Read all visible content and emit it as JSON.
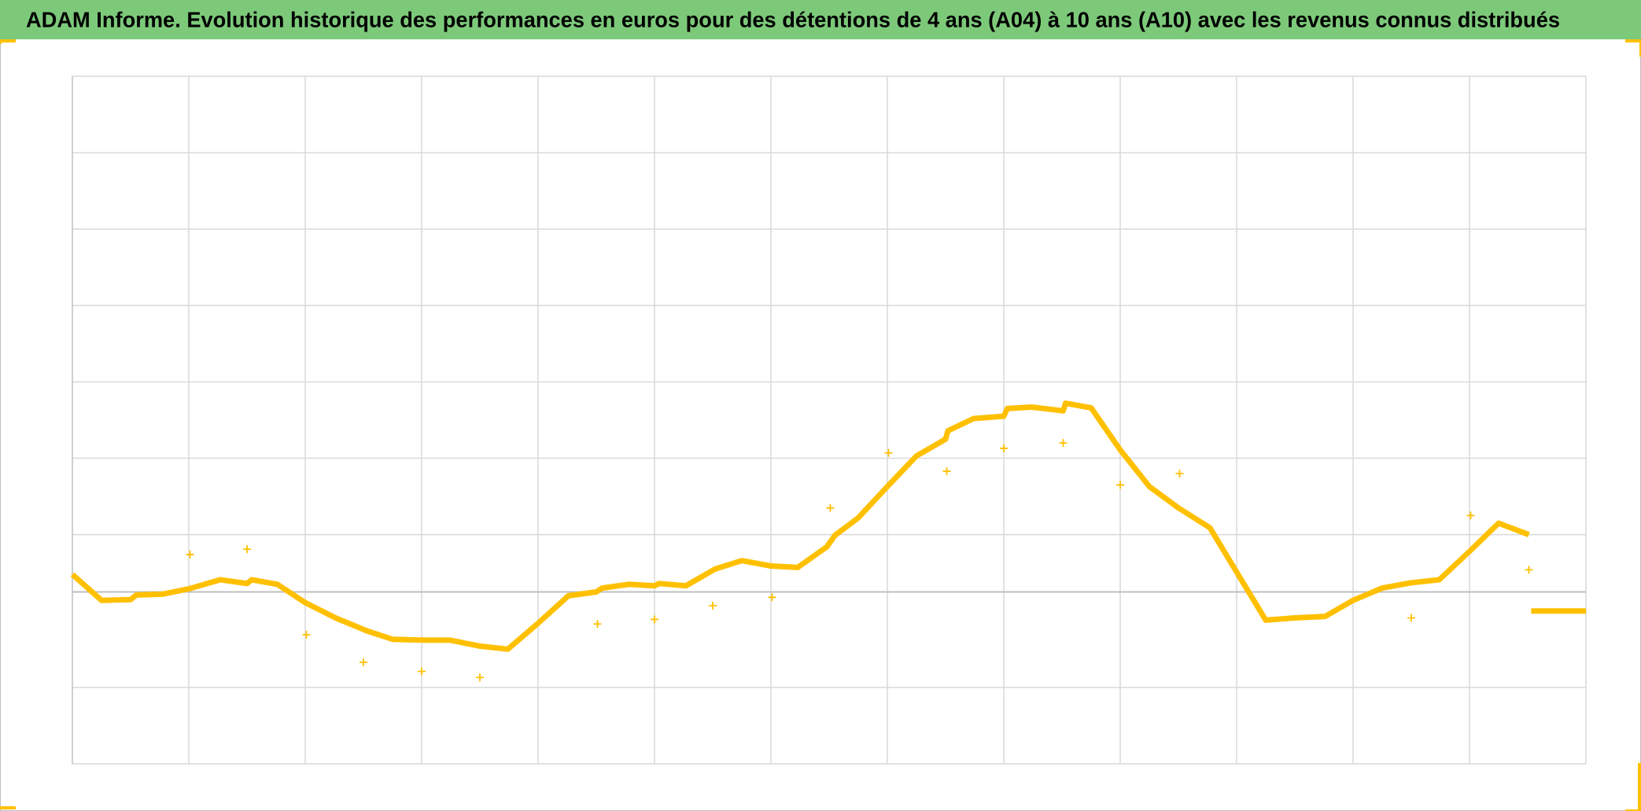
{
  "chart_data": {
    "type": "scatter",
    "title": "ADAM Informe. Evolution historique des performances en euros pour des détentions de 4 ans (A04) à 10 ans (A10) avec les revenus connus distribués",
    "xlim": [
      0,
      13
    ],
    "xticks": [
      0,
      1,
      2,
      3,
      4,
      5,
      6,
      7,
      8,
      9,
      10,
      11,
      12,
      13
    ],
    "ylim": [
      -2.25,
      6.75
    ],
    "yticks": [
      -2.25,
      -1.25,
      0.75,
      1.75,
      2.75,
      3.75,
      4.75,
      5.75,
      6.75
    ],
    "grid": true,
    "series": [
      {
        "color": "#FFC000",
        "marker": "line",
        "x": [
          0,
          0.25,
          0.5,
          0.55,
          0.77,
          1.0,
          1.27,
          1.5,
          1.54,
          1.76,
          2.0,
          2.26,
          2.53,
          2.75,
          3.0,
          3.24,
          3.5,
          3.74,
          4.0,
          4.26,
          4.5,
          4.55,
          4.78,
          5.0,
          5.04,
          5.27,
          5.52,
          5.75,
          6.0,
          6.23,
          6.48,
          6.55,
          6.75,
          7.0,
          7.25,
          7.5,
          7.52,
          7.74,
          8.0,
          8.03,
          8.24,
          8.51,
          8.53,
          8.75,
          9.0,
          9.25,
          9.5,
          9.77,
          10.0,
          10.25,
          10.5,
          10.76,
          11.0,
          11.25,
          11.5,
          11.74,
          12.0,
          12.25,
          12.51,
          12.52,
          12.53,
          13.0
        ],
        "values": [
          0.23,
          -0.11,
          -0.1,
          -0.04,
          -0.03,
          0.04,
          0.16,
          0.11,
          0.16,
          0.1,
          -0.14,
          -0.34,
          -0.51,
          -0.62,
          -0.63,
          -0.63,
          -0.71,
          -0.75,
          -0.41,
          -0.05,
          0,
          0.05,
          0.1,
          0.08,
          0.11,
          0.08,
          0.3,
          0.41,
          0.34,
          0.32,
          0.59,
          0.74,
          0.97,
          1.38,
          1.78,
          2.0,
          2.11,
          2.27,
          2.3,
          2.4,
          2.42,
          2.37,
          2.47,
          2.41,
          1.86,
          1.38,
          1.1,
          0.84,
          0.26,
          -0.37,
          -0.34,
          -0.32,
          -0.11,
          0.05,
          0.12,
          0.16,
          0.53,
          0.9,
          0.75,
          null,
          -0.25,
          -0.25
        ]
      },
      {
        "color": "#FFC000",
        "marker": "plus",
        "x": [
          1.01,
          1.5,
          2.01,
          2.5,
          3.0,
          3.5,
          4.51,
          5.0,
          5.5,
          6.01,
          6.51,
          7.01,
          7.51,
          8.0,
          8.51,
          9.0,
          9.51,
          11.5,
          12.01,
          12.51
        ],
        "values": [
          0.49,
          0.56,
          -0.56,
          -0.92,
          -1.04,
          -1.12,
          -0.42,
          -0.36,
          -0.18,
          -0.07,
          1.1,
          1.82,
          1.58,
          1.88,
          1.95,
          1.4,
          1.55,
          -0.34,
          1.0,
          0.29
        ]
      }
    ]
  }
}
